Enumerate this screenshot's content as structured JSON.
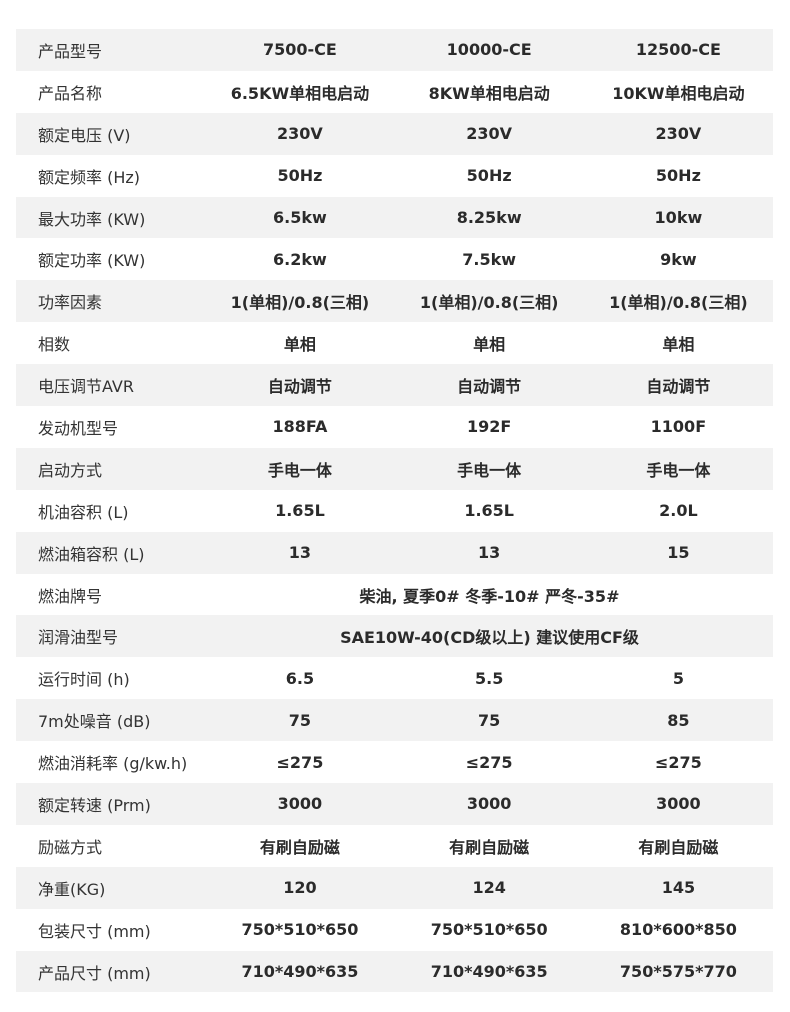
{
  "rows": [
    {
      "label": "产品型号",
      "values": [
        "7500-CE",
        "10000-CE",
        "12500-CE"
      ]
    },
    {
      "label": "产品名称",
      "values": [
        "6.5KW单相电启动",
        "8KW单相电启动",
        "10KW单相电启动"
      ]
    },
    {
      "label": "额定电压 (V)",
      "values": [
        "230V",
        "230V",
        "230V"
      ]
    },
    {
      "label": "额定频率 (Hz)",
      "values": [
        "50Hz",
        "50Hz",
        "50Hz"
      ]
    },
    {
      "label": "最大功率 (KW)",
      "values": [
        "6.5kw",
        "8.25kw",
        "10kw"
      ]
    },
    {
      "label": "额定功率 (KW)",
      "values": [
        "6.2kw",
        "7.5kw",
        "9kw"
      ]
    },
    {
      "label": "功率因素",
      "values": [
        "1(单相)/0.8(三相)",
        "1(单相)/0.8(三相)",
        "1(单相)/0.8(三相)"
      ]
    },
    {
      "label": "相数",
      "values": [
        "单相",
        "单相",
        "单相"
      ]
    },
    {
      "label": "电压调节AVR",
      "values": [
        "自动调节",
        "自动调节",
        "自动调节"
      ]
    },
    {
      "label": "发动机型号",
      "values": [
        "188FA",
        "192F",
        "1100F"
      ]
    },
    {
      "label": "启动方式",
      "values": [
        "手电一体",
        "手电一体",
        "手电一体"
      ]
    },
    {
      "label": "机油容积 (L)",
      "values": [
        "1.65L",
        "1.65L",
        "2.0L"
      ]
    },
    {
      "label": "燃油箱容积 (L)",
      "values": [
        "13",
        "13",
        "15"
      ]
    },
    {
      "label": "燃油牌号",
      "merged": "柴油, 夏季0# 冬季-10#  严冬-35#"
    },
    {
      "label": "润滑油型号",
      "merged": "SAE10W-40(CD级以上) 建议使用CF级"
    },
    {
      "label": "运行时间 (h)",
      "values": [
        "6.5",
        "5.5",
        "5"
      ]
    },
    {
      "label": "7m处噪音 (dB)",
      "values": [
        "75",
        "75",
        "85"
      ]
    },
    {
      "label": "燃油消耗率 (g/kw.h)",
      "values": [
        "≤275",
        "≤275",
        "≤275"
      ]
    },
    {
      "label": "额定转速 (Prm)",
      "values": [
        "3000",
        "3000",
        "3000"
      ]
    },
    {
      "label": "励磁方式",
      "values": [
        "有刷自励磁",
        "有刷自励磁",
        "有刷自励磁"
      ]
    },
    {
      "label": "净重(KG)",
      "values": [
        "120",
        "124",
        "145"
      ]
    },
    {
      "label": "包装尺寸 (mm)",
      "values": [
        "750*510*650",
        "750*510*650",
        "810*600*850"
      ]
    },
    {
      "label": "产品尺寸 (mm)",
      "values": [
        "710*490*635",
        "710*490*635",
        "750*575*770"
      ]
    }
  ],
  "colors": {
    "stripe": "#f2f2f2",
    "text": "#2b2b2b"
  }
}
